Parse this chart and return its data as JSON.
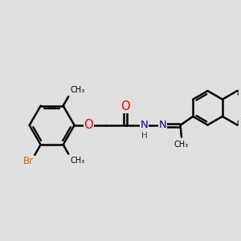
{
  "bg_color": "#e0e0e0",
  "bond_color": "#000000",
  "bond_width": 1.8,
  "atom_colors": {
    "O": "#ff0000",
    "N": "#0000cc",
    "Br": "#cc6600",
    "C": "#000000",
    "H": "#404040"
  },
  "font_size": 8.5,
  "fig_size": [
    3.0,
    3.0
  ],
  "dpi": 100,
  "xlim": [
    0,
    10
  ],
  "ylim": [
    1,
    9
  ]
}
